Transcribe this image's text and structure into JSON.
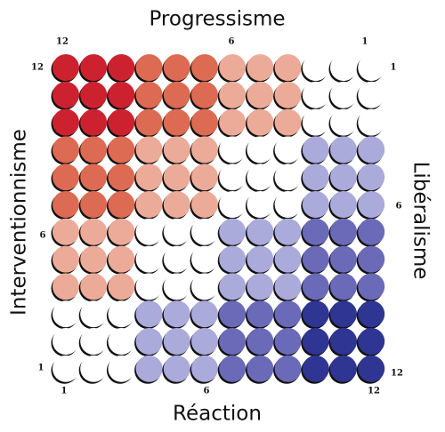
{
  "top": {
    "title": "Progressisme",
    "ticks": [
      "12",
      "6",
      "1"
    ]
  },
  "bottom": {
    "title": "Réaction",
    "ticks": [
      "1",
      "6",
      "12"
    ]
  },
  "left": {
    "title": "Interventionnisme",
    "ticks": [
      "12",
      "6",
      "1"
    ]
  },
  "right": {
    "title": "Libéralisme",
    "ticks": [
      "1",
      "6",
      "12"
    ]
  },
  "grid": {
    "rows": [
      [
        "#cc2230",
        "#cc2230",
        "#cc2230",
        "#dd6a52",
        "#dd6a52",
        "#dd6a52",
        "#ecab98",
        "#ecab98",
        "#ecab98",
        "#ffffff",
        "#ffffff",
        "#ffffff"
      ],
      [
        "#cc2230",
        "#cc2230",
        "#cc2230",
        "#dd6a52",
        "#dd6a52",
        "#dd6a52",
        "#ecab98",
        "#ecab98",
        "#ecab98",
        "#ffffff",
        "#ffffff",
        "#ffffff"
      ],
      [
        "#cc2230",
        "#cc2230",
        "#cc2230",
        "#dd6a52",
        "#dd6a52",
        "#dd6a52",
        "#ecab98",
        "#ecab98",
        "#ecab98",
        "#ffffff",
        "#ffffff",
        "#ffffff"
      ],
      [
        "#dd6a52",
        "#dd6a52",
        "#dd6a52",
        "#ecab98",
        "#ecab98",
        "#ecab98",
        "#ffffff",
        "#ffffff",
        "#ffffff",
        "#aaaadb",
        "#aaaadb",
        "#aaaadb"
      ],
      [
        "#dd6a52",
        "#dd6a52",
        "#dd6a52",
        "#ecab98",
        "#ecab98",
        "#ecab98",
        "#ffffff",
        "#ffffff",
        "#ffffff",
        "#aaaadb",
        "#aaaadb",
        "#aaaadb"
      ],
      [
        "#dd6a52",
        "#dd6a52",
        "#dd6a52",
        "#ecab98",
        "#ecab98",
        "#ecab98",
        "#ffffff",
        "#ffffff",
        "#ffffff",
        "#aaaadb",
        "#aaaadb",
        "#aaaadb"
      ],
      [
        "#ecab98",
        "#ecab98",
        "#ecab98",
        "#ffffff",
        "#ffffff",
        "#ffffff",
        "#aaaadb",
        "#aaaadb",
        "#aaaadb",
        "#6a6ab8",
        "#6a6ab8",
        "#6a6ab8"
      ],
      [
        "#ecab98",
        "#ecab98",
        "#ecab98",
        "#ffffff",
        "#ffffff",
        "#ffffff",
        "#aaaadb",
        "#aaaadb",
        "#aaaadb",
        "#6a6ab8",
        "#6a6ab8",
        "#6a6ab8"
      ],
      [
        "#ecab98",
        "#ecab98",
        "#ecab98",
        "#ffffff",
        "#ffffff",
        "#ffffff",
        "#aaaadb",
        "#aaaadb",
        "#aaaadb",
        "#6a6ab8",
        "#6a6ab8",
        "#6a6ab8"
      ],
      [
        "#ffffff",
        "#ffffff",
        "#ffffff",
        "#aaaadb",
        "#aaaadb",
        "#aaaadb",
        "#6a6ab8",
        "#6a6ab8",
        "#6a6ab8",
        "#2e3592",
        "#2e3592",
        "#2e3592"
      ],
      [
        "#ffffff",
        "#ffffff",
        "#ffffff",
        "#aaaadb",
        "#aaaadb",
        "#aaaadb",
        "#6a6ab8",
        "#6a6ab8",
        "#6a6ab8",
        "#2e3592",
        "#2e3592",
        "#2e3592"
      ],
      [
        "#ffffff",
        "#ffffff",
        "#ffffff",
        "#aaaadb",
        "#aaaadb",
        "#aaaadb",
        "#6a6ab8",
        "#6a6ab8",
        "#6a6ab8",
        "#2e3592",
        "#2e3592",
        "#2e3592"
      ]
    ]
  }
}
